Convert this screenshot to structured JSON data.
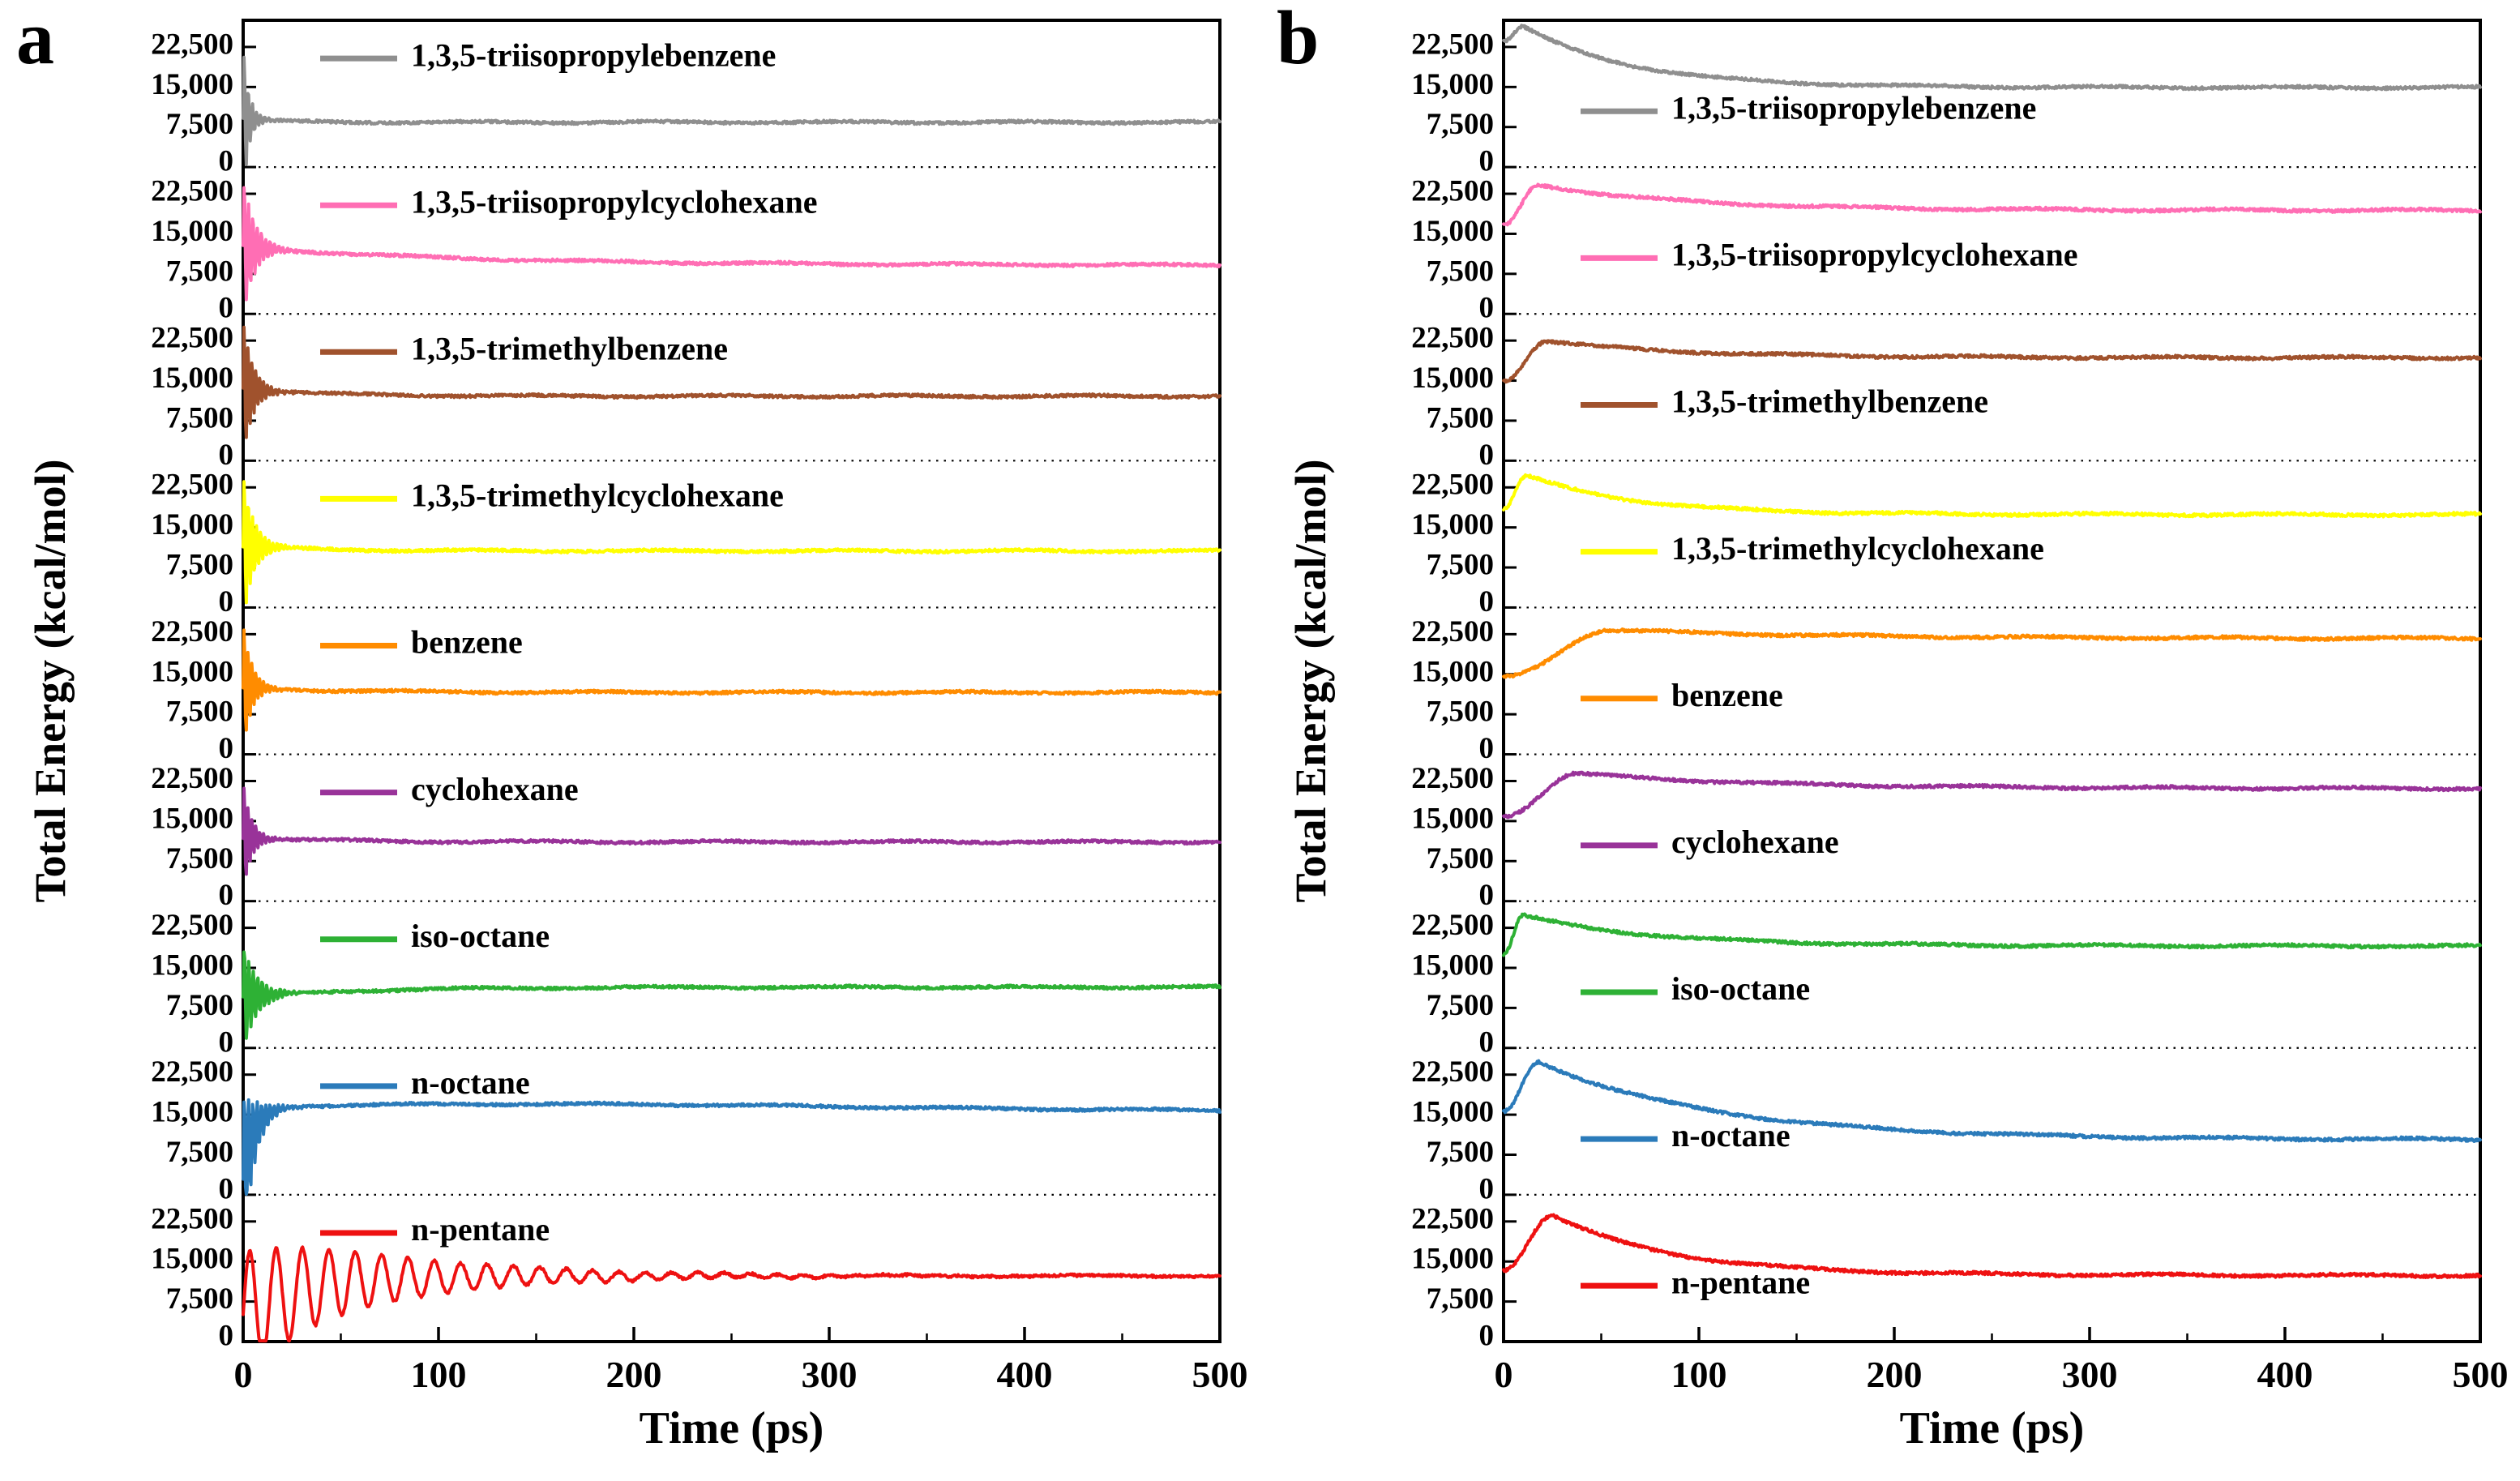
{
  "chart_data": [
    {
      "type": "line",
      "panel_label": "a",
      "xlabel": "Time (ps)",
      "ylabel": "Total Energy (kcal/mol)",
      "x_range": [
        0,
        500
      ],
      "x_ticks": [
        0,
        100,
        200,
        300,
        400,
        500
      ],
      "x_minor_step": 50,
      "subpanel_y_ticks": [
        0,
        7500,
        15000,
        22500
      ],
      "subpanel_y_tick_labels": [
        "0",
        "7,500",
        "15,000",
        "22,500"
      ],
      "subpanel_y_max": 27500,
      "grid": "dotted horizontal separators between 9 stacked subpanels",
      "legend_position": "inside upper-left of each subpanel",
      "model": "initial damped oscillation settling to equilibrium energy",
      "series": [
        {
          "name": "1,3,5-triisopropylebenzene",
          "color": "#8f8f8f",
          "start": 9000,
          "settle": 8400,
          "rise_tau": 20,
          "ring_amp": 14000,
          "ring_tau": 3,
          "ring_period": 2.1,
          "noise": 280
        },
        {
          "name": "1,3,5-triisopropylcyclohexane",
          "color": "#ff6eb4",
          "start": 12500,
          "settle": 9100,
          "rise_tau": 120,
          "ring_amp": 13000,
          "ring_tau": 6,
          "ring_period": 2.2,
          "noise": 280
        },
        {
          "name": "1,3,5-trimethylbenzene",
          "color": "#a0522d",
          "start": 13500,
          "settle": 12100,
          "rise_tau": 40,
          "ring_amp": 13000,
          "ring_tau": 5,
          "ring_period": 2.0,
          "noise": 280
        },
        {
          "name": "1,3,5-trimethylcyclohexane",
          "color": "#ffff00",
          "start": 11500,
          "settle": 10600,
          "rise_tau": 40,
          "ring_amp": 14000,
          "ring_tau": 5.5,
          "ring_period": 2.1,
          "noise": 280
        },
        {
          "name": "benzene",
          "color": "#ff8c00",
          "start": 12500,
          "settle": 11600,
          "rise_tau": 50,
          "ring_amp": 12000,
          "ring_tau": 4.5,
          "ring_period": 2.0,
          "noise": 280
        },
        {
          "name": "cyclohexane",
          "color": "#993399",
          "start": 12000,
          "settle": 11100,
          "rise_tau": 40,
          "ring_amp": 11000,
          "ring_tau": 4,
          "ring_period": 2.0,
          "noise": 280
        },
        {
          "name": "iso-octane",
          "color": "#2eb135",
          "start": 9500,
          "settle": 11400,
          "rise_tau": 60,
          "ring_amp": 10000,
          "ring_tau": 7,
          "ring_period": 2.3,
          "noise": 280
        },
        {
          "name": "n-octane",
          "color": "#2b7bba",
          "start": 2000,
          "settle": 15700,
          "rise_tau": 6,
          "ring_amp": 16000,
          "ring_tau": 6,
          "ring_period": 2.2,
          "noise": 280,
          "bump_amp": 1300,
          "bump_t": 150,
          "bump_sigma": 160
        },
        {
          "name": "n-pentane",
          "color": "#ee1111",
          "start": 5000,
          "settle": 12300,
          "rise_tau": 30,
          "ring_amp": 11800,
          "ring_tau": 75,
          "ring_period": 13.5,
          "noise": 250
        }
      ]
    },
    {
      "type": "line",
      "panel_label": "b",
      "xlabel": "Time (ps)",
      "ylabel": "Total Energy (kcal/mol)",
      "x_range": [
        0,
        500
      ],
      "x_ticks": [
        0,
        100,
        200,
        300,
        400,
        500
      ],
      "x_minor_step": 50,
      "subpanel_y_ticks": [
        0,
        7500,
        15000,
        22500
      ],
      "subpanel_y_tick_labels": [
        "0",
        "7,500",
        "15,000",
        "22,500"
      ],
      "subpanel_y_max": 27500,
      "grid": "dotted horizontal separators between 9 stacked subpanels",
      "legend_position": "inside lower-left of each subpanel",
      "model": "rise to an early peak then exponential relaxation to a plateau",
      "series": [
        {
          "name": "1,3,5-triisopropylebenzene",
          "color": "#8f8f8f",
          "start": 23500,
          "peak": 26300,
          "peak_t": 10,
          "decay_tau": 55,
          "plateau": 14900,
          "noise": 280
        },
        {
          "name": "1,3,5-triisopropylcyclohexane",
          "color": "#ff6eb4",
          "start": 16500,
          "peak": 24200,
          "peak_t": 18,
          "decay_tau": 75,
          "plateau": 19400,
          "noise": 300
        },
        {
          "name": "1,3,5-trimethylbenzene",
          "color": "#a0522d",
          "start": 15000,
          "peak": 22400,
          "peak_t": 22,
          "decay_tau": 70,
          "plateau": 19300,
          "noise": 300
        },
        {
          "name": "1,3,5-trimethylcyclohexane",
          "color": "#ffff00",
          "start": 18500,
          "peak": 24700,
          "peak_t": 12,
          "decay_tau": 55,
          "plateau": 17400,
          "noise": 300
        },
        {
          "name": "benzene",
          "color": "#ff8c00",
          "start": 14500,
          "peak": 23300,
          "peak_t": 55,
          "decay_tau": 110,
          "plateau": 21700,
          "noise": 300
        },
        {
          "name": "cyclohexane",
          "color": "#993399",
          "start": 16000,
          "peak": 23900,
          "peak_t": 38,
          "decay_tau": 95,
          "plateau": 21100,
          "noise": 300
        },
        {
          "name": "iso-octane",
          "color": "#2eb135",
          "start": 17500,
          "peak": 24800,
          "peak_t": 10,
          "decay_tau": 65,
          "plateau": 19100,
          "noise": 300
        },
        {
          "name": "n-octane",
          "color": "#2b7bba",
          "start": 15500,
          "peak": 24900,
          "peak_t": 18,
          "decay_tau": 90,
          "plateau": 10300,
          "noise": 300
        },
        {
          "name": "n-pentane",
          "color": "#ee1111",
          "start": 13500,
          "peak": 23700,
          "peak_t": 25,
          "decay_tau": 60,
          "plateau": 12400,
          "noise": 300
        }
      ]
    }
  ]
}
